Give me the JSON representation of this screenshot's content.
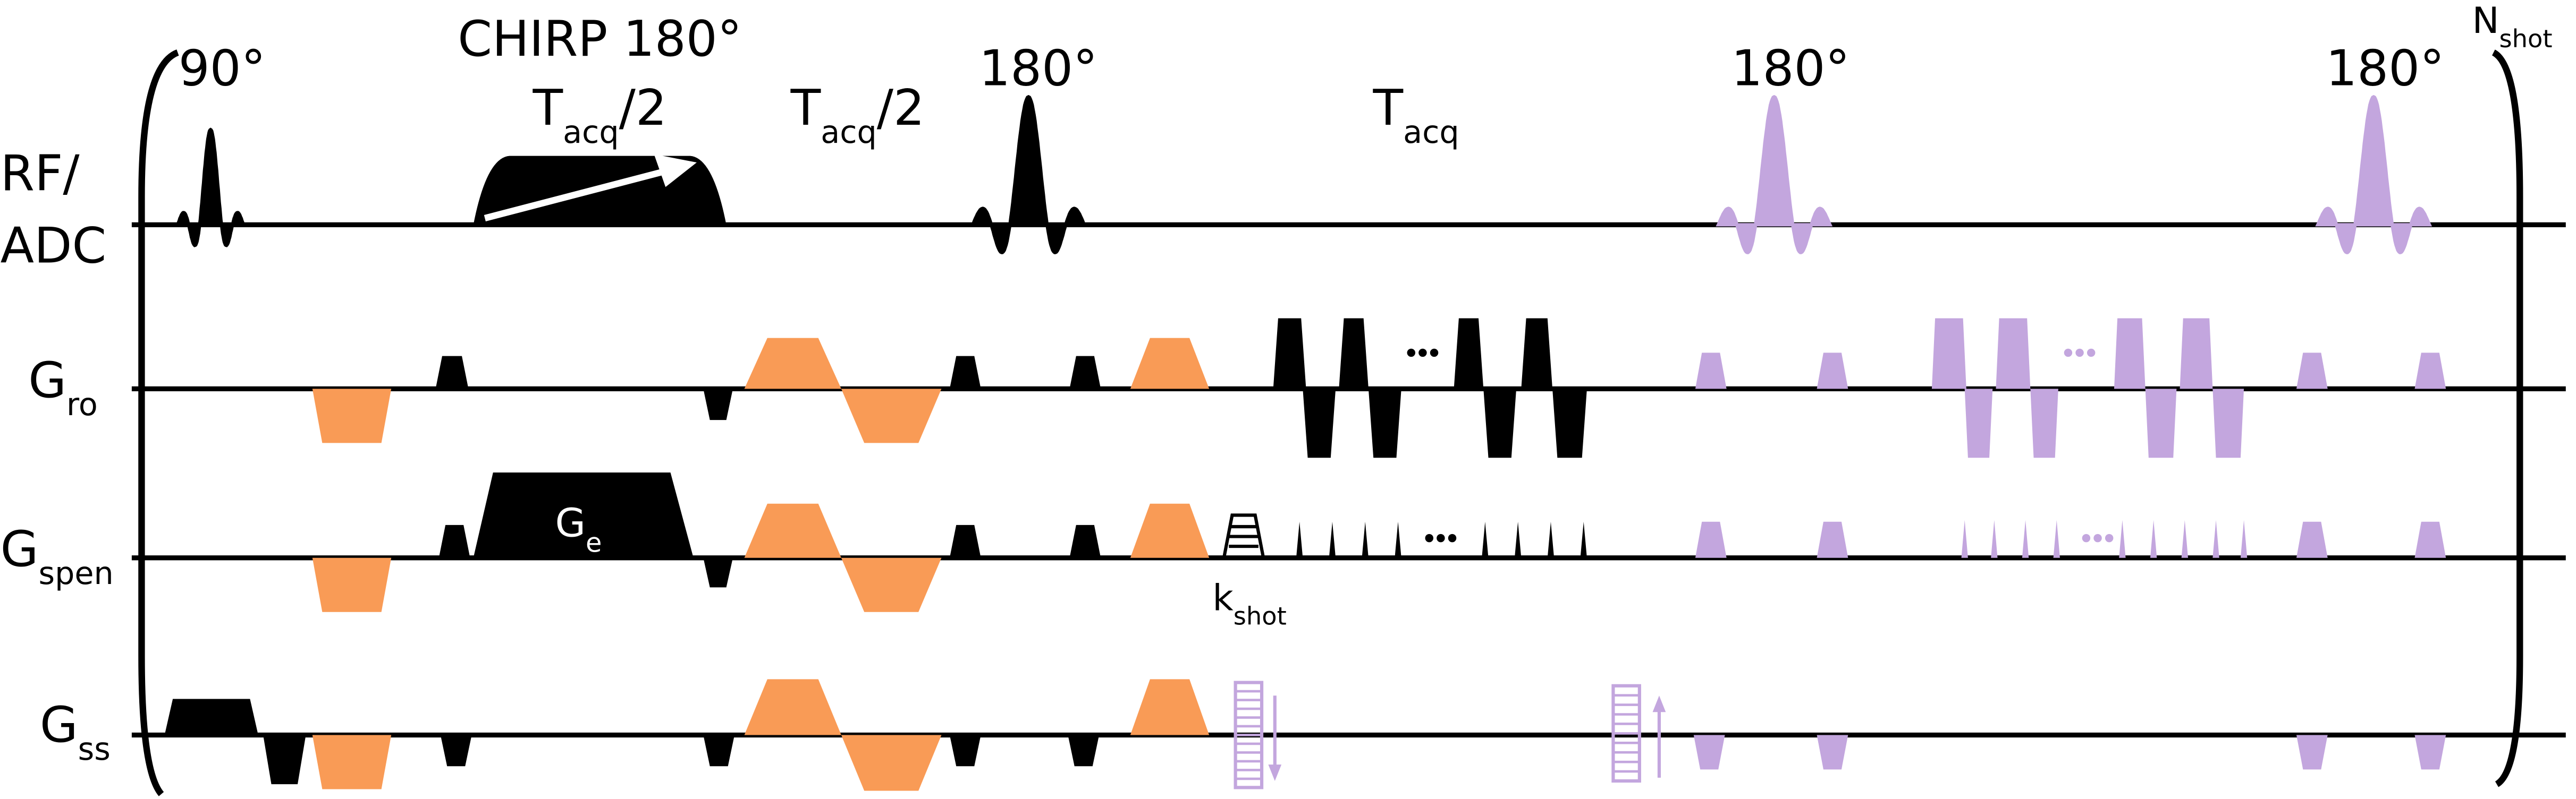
{
  "pulse_labels": [
    "90°",
    "CHIRP 180°",
    "180°",
    "180°",
    "180°"
  ],
  "timing_labels": [
    {
      "base": "T",
      "sub": "acq",
      "tail": "/2"
    },
    {
      "base": "T",
      "sub": "acq",
      "tail": "/2"
    },
    {
      "base": "T",
      "sub": "acq"
    }
  ],
  "rows": [
    {
      "lines": [
        "RF/",
        "ADC"
      ]
    },
    {
      "base": "G",
      "sub": "ro"
    },
    {
      "base": "G",
      "sub": "spen"
    },
    {
      "base": "G",
      "sub": "ss"
    }
  ],
  "gradient_label": {
    "base": "G",
    "sub": "e"
  },
  "kspace_label": {
    "base": "k",
    "sub": "shot"
  },
  "repeat_label": {
    "base": "N",
    "sub": "shot"
  }
}
